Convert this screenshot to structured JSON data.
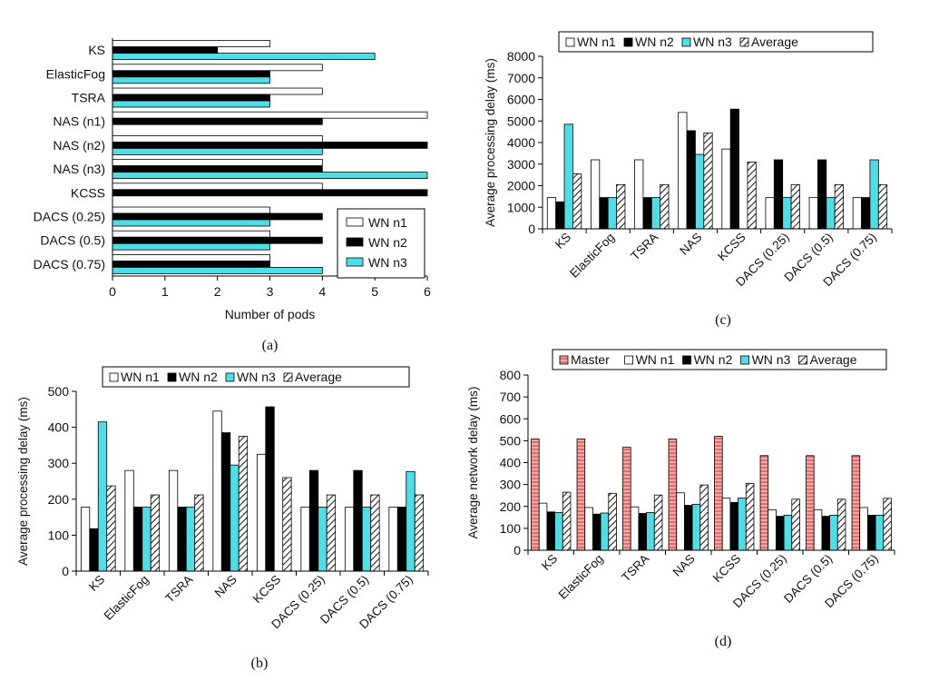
{
  "chart_data": [
    {
      "panel": "(a)",
      "type": "bar",
      "orientation": "horizontal",
      "categories": [
        "KS",
        "ElasticFog",
        "TSRA",
        "NAS (n1)",
        "NAS (n2)",
        "NAS (n3)",
        "KCSS",
        "DACS (0.25)",
        "DACS (0.5)",
        "DACS (0.75)"
      ],
      "series": [
        {
          "name": "WN n1",
          "color": "#ffffff",
          "values": [
            3,
            4,
            4,
            6,
            4,
            4,
            4,
            3,
            3,
            3
          ]
        },
        {
          "name": "WN n2",
          "color": "#000000",
          "values": [
            2,
            3,
            3,
            4,
            6,
            4,
            6,
            4,
            4,
            3
          ]
        },
        {
          "name": "WN n3",
          "color": "#4fdde6",
          "values": [
            5,
            3,
            3,
            0,
            4,
            6,
            0,
            3,
            3,
            4
          ]
        }
      ],
      "xlabel": "Number of pods",
      "xlim": [
        0,
        6
      ],
      "xticks": [
        "0",
        "1",
        "2",
        "3",
        "4",
        "5",
        "6"
      ],
      "legend": "bottom-right",
      "grid": false
    },
    {
      "panel": "(c)",
      "type": "bar",
      "categories": [
        "KS",
        "ElasticFog",
        "TSRA",
        "NAS",
        "KCSS",
        "DACS (0.25)",
        "DACS (0.5)",
        "DACS (0.75)"
      ],
      "series": [
        {
          "name": "WN n1",
          "color": "#ffffff",
          "values": [
            1450,
            3200,
            3200,
            5400,
            3700,
            1450,
            1450,
            1450
          ]
        },
        {
          "name": "WN n2",
          "color": "#000000",
          "values": [
            1250,
            1450,
            1450,
            4550,
            5550,
            3200,
            3200,
            1450
          ]
        },
        {
          "name": "WN n3",
          "color": "#4fdde6",
          "values": [
            4850,
            1450,
            1450,
            3450,
            0,
            1450,
            1450,
            3200
          ]
        },
        {
          "name": "Average",
          "color": "hatch",
          "values": [
            2550,
            2050,
            2050,
            4450,
            3100,
            2050,
            2050,
            2050
          ]
        }
      ],
      "ylabel": "Average processing delay (ms)",
      "ylim": [
        0,
        8000
      ],
      "yticks": [
        "0",
        "1000",
        "2000",
        "3000",
        "4000",
        "5000",
        "6000",
        "7000",
        "8000"
      ],
      "legend": "top",
      "grid": false
    },
    {
      "panel": "(b)",
      "type": "bar",
      "categories": [
        "KS",
        "ElasticFog",
        "TSRA",
        "NAS",
        "KCSS",
        "DACS (0.25)",
        "DACS (0.5)",
        "DACS (0.75)"
      ],
      "series": [
        {
          "name": "WN n1",
          "color": "#ffffff",
          "values": [
            178,
            280,
            280,
            445,
            325,
            178,
            178,
            178
          ]
        },
        {
          "name": "WN n2",
          "color": "#000000",
          "values": [
            118,
            178,
            178,
            385,
            457,
            280,
            280,
            178
          ]
        },
        {
          "name": "WN n3",
          "color": "#4fdde6",
          "values": [
            415,
            178,
            178,
            295,
            0,
            178,
            178,
            277
          ]
        },
        {
          "name": "Average",
          "color": "hatch",
          "values": [
            237,
            212,
            212,
            375,
            260,
            212,
            212,
            212
          ]
        }
      ],
      "ylabel": "Average processing delay (ms)",
      "ylim": [
        0,
        500
      ],
      "yticks": [
        "0",
        "100",
        "200",
        "300",
        "400",
        "500"
      ],
      "legend": "top",
      "grid": false
    },
    {
      "panel": "(d)",
      "type": "bar",
      "categories": [
        "KS",
        "ElasticFog",
        "TSRA",
        "NAS",
        "KCSS",
        "DACS (0.25)",
        "DACS (0.5)",
        "DACS (0.75)"
      ],
      "series": [
        {
          "name": "Master",
          "color": "#f08c8c",
          "values": [
            508,
            508,
            470,
            508,
            520,
            432,
            432,
            432
          ]
        },
        {
          "name": "WN n1",
          "color": "#ffffff",
          "values": [
            215,
            195,
            198,
            262,
            238,
            185,
            185,
            195
          ]
        },
        {
          "name": "WN n2",
          "color": "#000000",
          "values": [
            175,
            165,
            168,
            205,
            218,
            155,
            155,
            160
          ]
        },
        {
          "name": "WN n3",
          "color": "#4fdde6",
          "values": [
            172,
            170,
            172,
            210,
            238,
            160,
            160,
            160
          ]
        },
        {
          "name": "Average",
          "color": "hatch",
          "values": [
            265,
            260,
            252,
            298,
            305,
            233,
            233,
            237
          ]
        }
      ],
      "ylabel": "Average network delay (ms)",
      "ylim": [
        0,
        800
      ],
      "yticks": [
        "0",
        "100",
        "200",
        "300",
        "400",
        "500",
        "600",
        "700",
        "800"
      ],
      "legend": "top",
      "grid": false
    }
  ]
}
